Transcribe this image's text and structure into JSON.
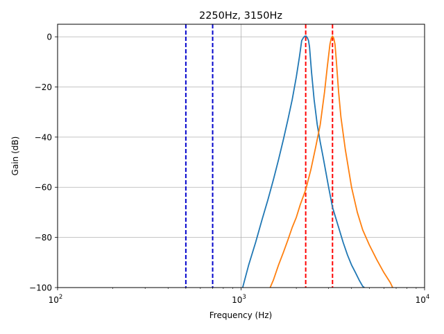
{
  "chart_data": {
    "type": "line",
    "title": "2250Hz, 3150Hz",
    "xlabel": "Frequency (Hz)",
    "ylabel": "Gain (dB)",
    "xscale": "log",
    "xlim": [
      100,
      10000
    ],
    "ylim": [
      -100,
      5
    ],
    "grid": true,
    "legend": "none",
    "x_ticks": [
      {
        "value": 100,
        "base": "10",
        "exp": "2"
      },
      {
        "value": 1000,
        "base": "10",
        "exp": "3"
      },
      {
        "value": 10000,
        "base": "10",
        "exp": "4"
      }
    ],
    "y_ticks": [
      {
        "value": 0,
        "label": "0"
      },
      {
        "value": -20,
        "label": "−20"
      },
      {
        "value": -40,
        "label": "−40"
      },
      {
        "value": -60,
        "label": "−60"
      },
      {
        "value": -80,
        "label": "−80"
      },
      {
        "value": -100,
        "label": "−100"
      }
    ],
    "vlines": [
      {
        "x": 500,
        "color": "#0000cc",
        "style": "dashed"
      },
      {
        "x": 700,
        "color": "#0000cc",
        "style": "dashed"
      },
      {
        "x": 2250,
        "color": "#ff0000",
        "style": "dashed"
      },
      {
        "x": 3150,
        "color": "#ff0000",
        "style": "dashed"
      }
    ],
    "series": [
      {
        "color": "#1f77b4",
        "x": [
          1020,
          1100,
          1200,
          1300,
          1400,
          1500,
          1600,
          1700,
          1800,
          1900,
          2000,
          2080,
          2140,
          2180,
          2220,
          2260,
          2300,
          2330,
          2360,
          2420,
          2500,
          2600,
          2700,
          2800,
          3000,
          3150,
          3400,
          3600,
          3800,
          4000,
          4200,
          4400,
          4600,
          4700
        ],
        "y": [
          -100,
          -91,
          -82,
          -73,
          -65,
          -57,
          -49,
          -41,
          -33,
          -25,
          -16,
          -8,
          -1.5,
          -0.5,
          0.2,
          0.3,
          -0.5,
          -1.5,
          -4,
          -14,
          -25,
          -35,
          -42,
          -48,
          -60,
          -68,
          -76,
          -82,
          -87,
          -91,
          -94,
          -97,
          -99.5,
          -100
        ]
      },
      {
        "color": "#ff7f0e",
        "x": [
          1440,
          1500,
          1600,
          1700,
          1800,
          1900,
          2000,
          2100,
          2250,
          2400,
          2550,
          2700,
          2850,
          2950,
          3050,
          3100,
          3150,
          3200,
          3250,
          3300,
          3400,
          3500,
          3700,
          4000,
          4300,
          4600,
          5000,
          5500,
          6000,
          6500,
          6700
        ],
        "y": [
          -100,
          -97,
          -91,
          -86,
          -81,
          -76,
          -72,
          -67,
          -61,
          -53,
          -44,
          -35,
          -22,
          -12,
          -3,
          -0.6,
          0.3,
          -0.6,
          -3,
          -9,
          -22,
          -32,
          -45,
          -60,
          -70,
          -77,
          -83,
          -89,
          -94,
          -98,
          -100
        ]
      }
    ]
  }
}
